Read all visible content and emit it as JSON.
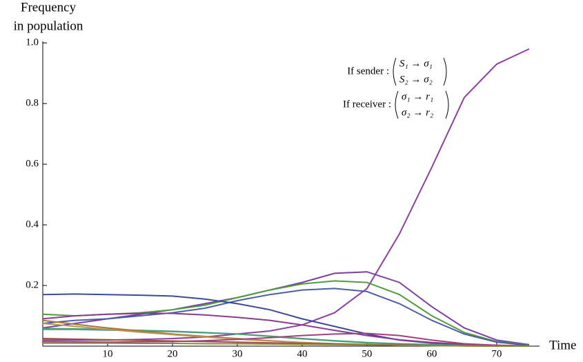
{
  "chart_data": {
    "type": "line",
    "ylabel": [
      "Frequency",
      "in population"
    ],
    "xlabel": "Time",
    "annotations": {
      "sender": "If sender :",
      "sender_rows": [
        "S₁ → σ₁",
        "S₂ → σ₂"
      ],
      "receiver": "If receiver :",
      "receiver_rows": [
        "σ₁ → r₁",
        "σ₂ → r₂"
      ]
    },
    "x": [
      0,
      5,
      10,
      15,
      20,
      25,
      30,
      35,
      40,
      45,
      50,
      55,
      60,
      65,
      70,
      75
    ],
    "xlim": [
      0,
      76.5
    ],
    "xticks": [
      10,
      20,
      30,
      40,
      50,
      60,
      70
    ],
    "ylim": [
      0,
      1.005
    ],
    "yticks": [
      0.2,
      0.4,
      0.6,
      0.8,
      {
        "value": 1,
        "label": "1.0"
      }
    ],
    "series": [
      {
        "color": "#8b3fa0",
        "values": [
          0.02,
          0.02,
          0.02,
          0.022,
          0.025,
          0.03,
          0.04,
          0.05,
          0.07,
          0.11,
          0.19,
          0.37,
          0.59,
          0.82,
          0.93,
          0.98
        ]
      },
      {
        "color": "#7b3fa0",
        "values": [
          0.06,
          0.075,
          0.09,
          0.105,
          0.12,
          0.14,
          0.16,
          0.185,
          0.21,
          0.24,
          0.245,
          0.21,
          0.13,
          0.06,
          0.02,
          0.005
        ]
      },
      {
        "color": "#4d9e3a",
        "values": [
          0.105,
          0.1,
          0.105,
          0.11,
          0.12,
          0.135,
          0.16,
          0.185,
          0.205,
          0.215,
          0.21,
          0.17,
          0.1,
          0.045,
          0.015,
          0.004
        ]
      },
      {
        "color": "#4a5ea8",
        "values": [
          0.075,
          0.085,
          0.09,
          0.1,
          0.11,
          0.125,
          0.15,
          0.17,
          0.185,
          0.19,
          0.18,
          0.14,
          0.085,
          0.04,
          0.013,
          0.003
        ]
      },
      {
        "color": "#3a4a9a",
        "values": [
          0.17,
          0.172,
          0.17,
          0.168,
          0.165,
          0.155,
          0.14,
          0.12,
          0.09,
          0.065,
          0.04,
          0.02,
          0.01,
          0.004,
          0.001,
          0
        ]
      },
      {
        "color": "#8a3a90",
        "values": [
          0.09,
          0.1,
          0.105,
          0.108,
          0.108,
          0.103,
          0.095,
          0.085,
          0.07,
          0.052,
          0.035,
          0.021,
          0.012,
          0.006,
          0.003,
          0.001
        ]
      },
      {
        "color": "#3aa0a0",
        "values": [
          0.055,
          0.055,
          0.053,
          0.051,
          0.048,
          0.044,
          0.04,
          0.033,
          0.025,
          0.018,
          0.012,
          0.008,
          0.005,
          0.002,
          0.001,
          0
        ]
      },
      {
        "color": "#4aa070",
        "values": [
          0.058,
          0.057,
          0.055,
          0.052,
          0.049,
          0.045,
          0.04,
          0.032,
          0.024,
          0.017,
          0.011,
          0.007,
          0.004,
          0.002,
          0.001,
          0
        ]
      },
      {
        "color": "#a07a3a",
        "values": [
          0.085,
          0.072,
          0.06,
          0.05,
          0.04,
          0.032,
          0.025,
          0.018,
          0.012,
          0.008,
          0.005,
          0.003,
          0.002,
          0.001,
          0,
          0
        ]
      },
      {
        "color": "#c09050",
        "values": [
          0.075,
          0.065,
          0.055,
          0.046,
          0.038,
          0.03,
          0.023,
          0.017,
          0.012,
          0.008,
          0.005,
          0.003,
          0.002,
          0.001,
          0,
          0
        ]
      },
      {
        "color": "#a0407a",
        "values": [
          0.015,
          0.014,
          0.013,
          0.014,
          0.015,
          0.018,
          0.022,
          0.028,
          0.035,
          0.04,
          0.042,
          0.035,
          0.02,
          0.008,
          0.003,
          0.001
        ]
      },
      {
        "color": "#a04a4a",
        "values": [
          0.025,
          0.023,
          0.021,
          0.019,
          0.017,
          0.015,
          0.013,
          0.011,
          0.009,
          0.007,
          0.005,
          0.004,
          0.002,
          0.001,
          0,
          0
        ]
      },
      {
        "color": "#8a8a3a",
        "values": [
          0.01,
          0.01,
          0.01,
          0.009,
          0.009,
          0.008,
          0.008,
          0.007,
          0.006,
          0.005,
          0.004,
          0.003,
          0.002,
          0.001,
          0,
          0
        ]
      }
    ]
  }
}
